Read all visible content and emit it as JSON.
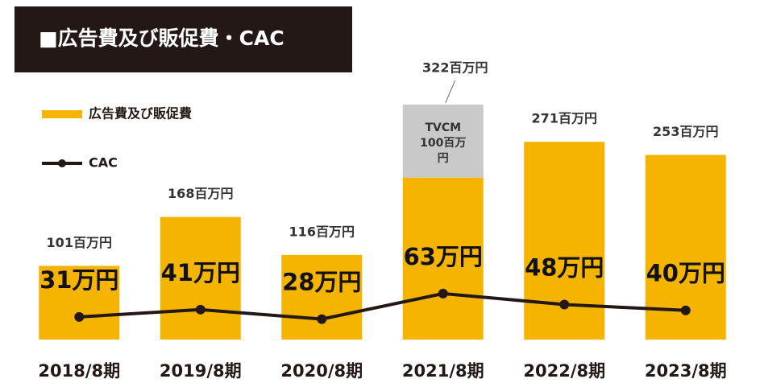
{
  "chart_data": {
    "type": "bar",
    "title": "■広告費及び販促費・CAC",
    "categories": [
      "2018/8期",
      "2019/8期",
      "2020/8期",
      "2021/8期",
      "2022/8期",
      "2023/8期"
    ],
    "series": [
      {
        "name": "広告費及び販促費",
        "type": "bar",
        "color": "#f5b400",
        "in_legend": true,
        "values": [
          101,
          168,
          116,
          222,
          271,
          253
        ],
        "value_labels": [
          "101百万円",
          "168百万円",
          "116百万円",
          null,
          "271百万円",
          "253百万円"
        ]
      },
      {
        "name": "TVCM",
        "type": "bar",
        "color": "#c9c9c9",
        "in_legend": false,
        "values": [
          null,
          null,
          null,
          100,
          null,
          null
        ],
        "value_labels": [
          null,
          null,
          null,
          "TVCM 100百万円",
          null,
          null
        ]
      },
      {
        "name": "CAC",
        "type": "line",
        "color": "#231815",
        "in_legend": true,
        "values": [
          31,
          41,
          28,
          63,
          48,
          40
        ],
        "value_labels": [
          "31万円",
          "41万円",
          "28万円",
          "63万円",
          "48万円",
          "40万円"
        ]
      }
    ],
    "annotations": [
      {
        "text": "322百万円",
        "category": 3
      }
    ]
  }
}
